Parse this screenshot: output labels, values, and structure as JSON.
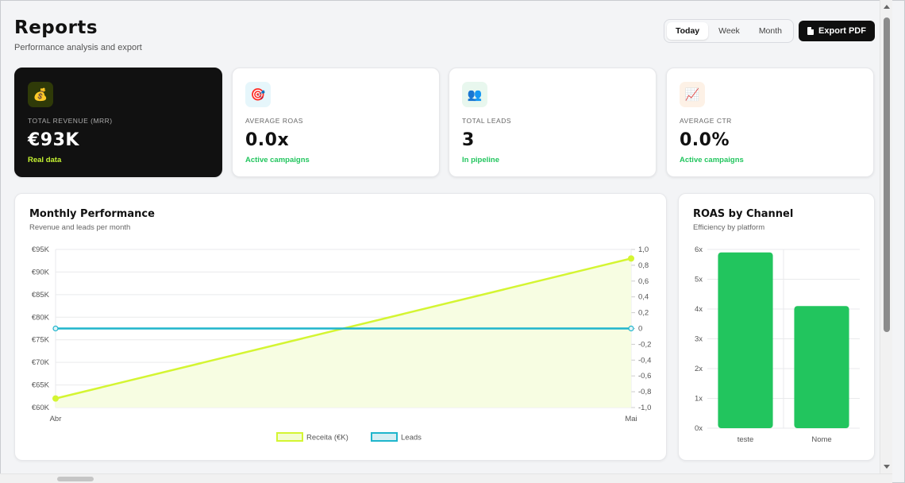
{
  "header": {
    "title": "Reports",
    "subtitle": "Performance analysis and export"
  },
  "range_tabs": [
    {
      "label": "Today",
      "active": true
    },
    {
      "label": "Week",
      "active": false
    },
    {
      "label": "Month",
      "active": false
    }
  ],
  "export_label": "Export PDF",
  "kpis": [
    {
      "label": "Total Revenue (MRR)",
      "value": "€93K",
      "sub": "Real data",
      "icon": "money-bag-icon",
      "icon_glyph": "💰",
      "icon_bg": "#2f3a08"
    },
    {
      "label": "Average ROAS",
      "value": "0.0x",
      "sub": "Active campaigns",
      "icon": "target-icon",
      "icon_glyph": "🎯",
      "icon_bg": "#e6f6fb"
    },
    {
      "label": "Total Leads",
      "value": "3",
      "sub": "In pipeline",
      "icon": "users-icon",
      "icon_glyph": "👥",
      "icon_bg": "#e8f7ee"
    },
    {
      "label": "Average CTR",
      "value": "0.0%",
      "sub": "Active campaigns",
      "icon": "chart-icon",
      "icon_glyph": "📈",
      "icon_bg": "#fdf1e6"
    }
  ],
  "monthly_panel": {
    "title": "Monthly Performance",
    "subtitle": "Revenue and leads per month"
  },
  "roas_panel": {
    "title": "ROAS by Channel",
    "subtitle": "Efficiency by platform"
  },
  "chart_data": [
    {
      "type": "line",
      "x": [
        "Abr",
        "Mai"
      ],
      "series": [
        {
          "name": "Receita (€K)",
          "axis": "left",
          "values": [
            62,
            93
          ],
          "color": "#d4f532",
          "fill": "#f7fde2"
        },
        {
          "name": "Leads",
          "axis": "right",
          "values": [
            0,
            0
          ],
          "color": "#1fb5cc"
        }
      ],
      "y_left": {
        "ylim": [
          60,
          95
        ],
        "ticks": [
          60,
          65,
          70,
          75,
          80,
          85,
          90,
          95
        ],
        "tick_labels": [
          "€60K",
          "€65K",
          "€70K",
          "€75K",
          "€80K",
          "€85K",
          "€90K",
          "€95K"
        ]
      },
      "y_right": {
        "ylim": [
          -1,
          1
        ],
        "ticks": [
          -1,
          -0.8,
          -0.6,
          -0.4,
          -0.2,
          0,
          0.2,
          0.4,
          0.6,
          0.8,
          1
        ],
        "tick_labels": [
          "-1,0",
          "-0,8",
          "-0,6",
          "-0,4",
          "-0,2",
          "0",
          "0,2",
          "0,4",
          "0,6",
          "0,8",
          "1,0"
        ]
      },
      "grid": true,
      "legend": "bottom"
    },
    {
      "type": "bar",
      "categories": [
        "teste",
        "Nome"
      ],
      "values": [
        5.9,
        4.1
      ],
      "color": "#22c55e",
      "ylim": [
        0,
        6
      ],
      "ticks": [
        0,
        1,
        2,
        3,
        4,
        5,
        6
      ],
      "tick_labels": [
        "0x",
        "1x",
        "2x",
        "3x",
        "4x",
        "5x",
        "6x"
      ],
      "grid": true
    }
  ]
}
